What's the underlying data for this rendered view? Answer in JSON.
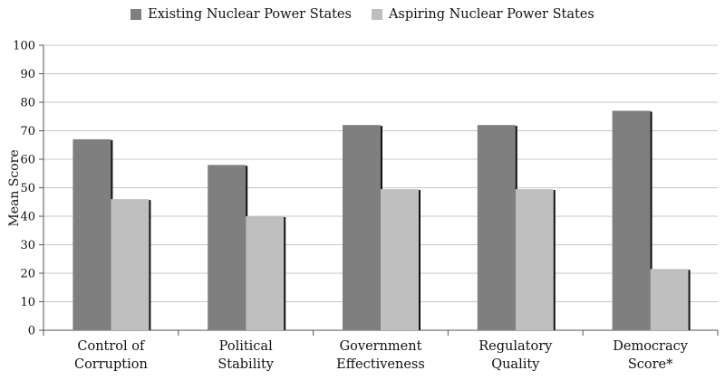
{
  "chart_data": {
    "type": "bar",
    "categories": [
      [
        "Control of",
        "Corruption"
      ],
      [
        "Political",
        "Stability"
      ],
      [
        "Government",
        "Effectiveness"
      ],
      [
        "Regulatory",
        "Quality"
      ],
      [
        "Democracy",
        "Score*"
      ]
    ],
    "series": [
      {
        "name": "Existing Nuclear Power States",
        "color": "#7f7f7f",
        "values": [
          67,
          58,
          72,
          72,
          77
        ]
      },
      {
        "name": "Aspiring Nuclear Power States",
        "color": "#bfbfbf",
        "values": [
          46,
          40,
          49.5,
          49.5,
          21.5
        ]
      }
    ],
    "ylabel": "Mean Score",
    "ylim": [
      0,
      100
    ],
    "yticks": [
      0,
      10,
      20,
      30,
      40,
      50,
      60,
      70,
      80,
      90,
      100
    ],
    "grid": true,
    "legend_position": "top-center"
  }
}
